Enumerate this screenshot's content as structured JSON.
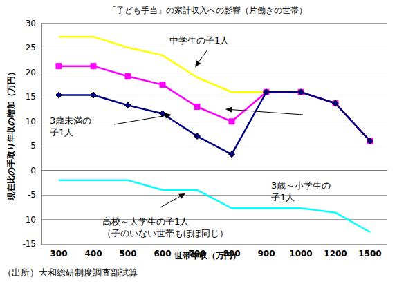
{
  "chart_data": {
    "type": "line",
    "title": "「子ども手当」の家計収入への影響（片働きの世帯）",
    "x_label": "世帯年収（万円）",
    "y_label": "現在比の手取り年収の増加（万円）",
    "source": "（出所）大和総研制度調査部試算",
    "categories": [
      "300",
      "400",
      "500",
      "600",
      "700",
      "800",
      "900",
      "1000",
      "1200",
      "1500"
    ],
    "ylim": [
      -15,
      30
    ],
    "yticks": [
      -15,
      -10,
      -5,
      0,
      5,
      10,
      15,
      20,
      25,
      30
    ],
    "grid": true,
    "series": [
      {
        "name": "中学生の子1人",
        "color": "#ffff00",
        "marker": "none",
        "values": [
          27.3,
          27.3,
          25.1,
          23.5,
          19,
          16,
          16,
          16,
          13.7,
          6
        ]
      },
      {
        "name": "3歳～小学生の子1人",
        "color": "#ff00ff",
        "marker": "square",
        "values": [
          21.3,
          21.3,
          19.2,
          17.5,
          13,
          10,
          16,
          16,
          13.7,
          6
        ]
      },
      {
        "name": "3歳未満の子1人",
        "color": "#000080",
        "marker": "diamond",
        "values": [
          15.4,
          15.4,
          13.3,
          11.6,
          7,
          3.3,
          16,
          16,
          13.7,
          6
        ]
      },
      {
        "name": "高校～大学生の子1人（子のいない世帯もほぼ同じ）",
        "color": "#00ffff",
        "marker": "none",
        "values": [
          -2,
          -2,
          -2,
          -4,
          -4,
          -7.7,
          -7.7,
          -7.7,
          -8.6,
          -12.6
        ]
      }
    ],
    "annotations": [
      "中学生の子1人",
      "3歳未満の\n子1人",
      "3歳～小学生の\n子1人",
      "高校～大学生の子1人\n（子のいない世帯もほぼ同じ）"
    ]
  }
}
